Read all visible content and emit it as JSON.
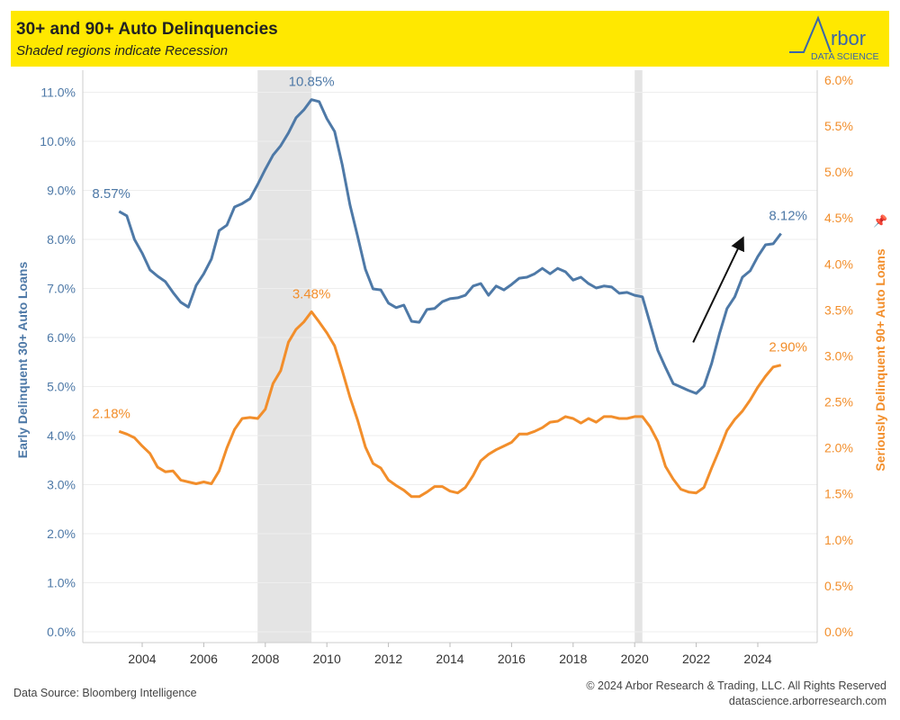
{
  "header": {
    "title": "30+ and 90+ Auto Delinquencies",
    "subtitle": "Shaded regions indicate Recession",
    "logo_text": "Arbor",
    "logo_subtext": "DATA SCIENCE"
  },
  "footer": {
    "source": "Data Source: Bloomberg Intelligence",
    "copyright": "© 2024 Arbor Research & Trading, LLC. All Rights Reserved",
    "website": "datascience.arborresearch.com"
  },
  "chart_data": {
    "type": "line",
    "title": "30+ and 90+ Auto Delinquencies",
    "start_quarter": "2003 Q2",
    "frequency": "quarterly",
    "xlim": [
      2002.1,
      2025.8
    ],
    "x_ticks": [
      "2004",
      "2006",
      "2008",
      "2010",
      "2012",
      "2014",
      "2016",
      "2018",
      "2020",
      "2022",
      "2024"
    ],
    "ylabel_left": "Early Delinquent 30+ Auto Loans",
    "ylabel_right": "Seriously Delinquent 90+ Auto Loans",
    "ylim_left": [
      0,
      11
    ],
    "ylim_right": [
      0,
      6
    ],
    "y_ticks_left": [
      "0.0%",
      "1.0%",
      "2.0%",
      "3.0%",
      "4.0%",
      "5.0%",
      "6.0%",
      "7.0%",
      "8.0%",
      "9.0%",
      "10.0%",
      "11.0%"
    ],
    "y_ticks_right": [
      "0.0%",
      "0.5%",
      "1.0%",
      "1.5%",
      "2.0%",
      "2.5%",
      "3.0%",
      "3.5%",
      "4.0%",
      "4.5%",
      "5.0%",
      "5.5%",
      "6.0%"
    ],
    "grid": true,
    "recessions": [
      [
        2007.75,
        2009.5
      ],
      [
        2020.0,
        2020.25
      ]
    ],
    "series": [
      {
        "axis": "left",
        "color": "#4e79a7",
        "values": [
          8.57,
          8.48,
          8.0,
          7.72,
          7.38,
          7.25,
          7.14,
          6.92,
          6.72,
          6.62,
          7.06,
          7.3,
          7.6,
          8.18,
          8.29,
          8.66,
          8.73,
          8.83,
          9.12,
          9.43,
          9.72,
          9.91,
          10.17,
          10.48,
          10.64,
          10.85,
          10.81,
          10.46,
          10.2,
          9.52,
          8.7,
          8.06,
          7.39,
          6.99,
          6.97,
          6.7,
          6.61,
          6.66,
          6.33,
          6.31,
          6.57,
          6.59,
          6.73,
          6.79,
          6.81,
          6.86,
          7.05,
          7.1,
          6.86,
          7.05,
          6.97,
          7.08,
          7.21,
          7.23,
          7.3,
          7.41,
          7.3,
          7.41,
          7.34,
          7.17,
          7.23,
          7.1,
          7.01,
          7.05,
          7.03,
          6.9,
          6.92,
          6.86,
          6.83,
          6.29,
          5.74,
          5.39,
          5.06,
          4.99,
          4.92,
          4.86,
          5.01,
          5.47,
          6.07,
          6.59,
          6.83,
          7.23,
          7.36,
          7.65,
          7.89,
          7.91,
          8.12
        ],
        "labels": [
          {
            "index": 0,
            "text": "8.57%"
          },
          {
            "index": 25,
            "text": "10.85%"
          },
          {
            "index": 86,
            "text": "8.12%"
          }
        ]
      },
      {
        "axis": "right",
        "color": "#f28e2b",
        "values": [
          2.18,
          2.15,
          2.11,
          2.02,
          1.94,
          1.79,
          1.74,
          1.75,
          1.65,
          1.63,
          1.61,
          1.63,
          1.61,
          1.75,
          2.0,
          2.2,
          2.32,
          2.33,
          2.32,
          2.42,
          2.7,
          2.84,
          3.15,
          3.29,
          3.37,
          3.48,
          3.37,
          3.25,
          3.11,
          2.84,
          2.55,
          2.3,
          2.01,
          1.83,
          1.78,
          1.65,
          1.59,
          1.54,
          1.47,
          1.47,
          1.52,
          1.58,
          1.58,
          1.53,
          1.51,
          1.57,
          1.7,
          1.86,
          1.93,
          1.98,
          2.02,
          2.06,
          2.15,
          2.15,
          2.18,
          2.22,
          2.28,
          2.29,
          2.34,
          2.32,
          2.27,
          2.32,
          2.28,
          2.34,
          2.34,
          2.32,
          2.32,
          2.34,
          2.34,
          2.23,
          2.07,
          1.8,
          1.66,
          1.55,
          1.52,
          1.51,
          1.57,
          1.78,
          1.98,
          2.19,
          2.31,
          2.4,
          2.52,
          2.66,
          2.78,
          2.88,
          2.9
        ],
        "labels": [
          {
            "index": 0,
            "text": "2.18%"
          },
          {
            "index": 25,
            "text": "3.48%"
          },
          {
            "index": 86,
            "text": "2.90%"
          }
        ]
      }
    ],
    "annotations": [
      {
        "type": "arrow",
        "from": [
          2021.9,
          5.9
        ],
        "to": [
          2023.5,
          8.0
        ]
      }
    ]
  }
}
